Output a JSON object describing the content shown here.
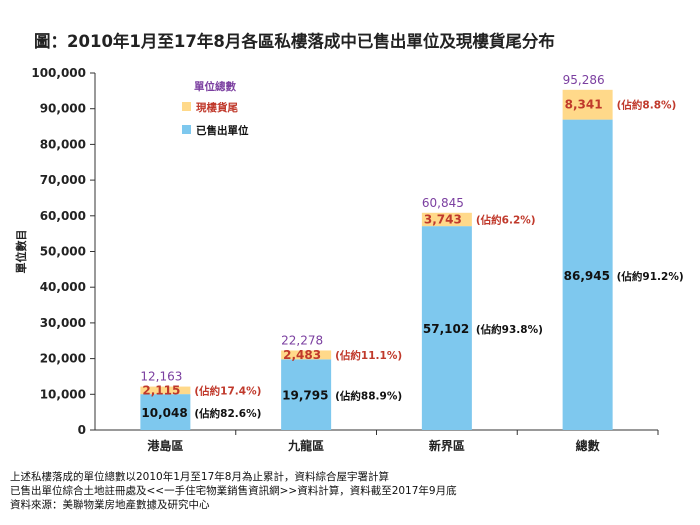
{
  "title": "圖：2010年1月至17年8月各區私樓落成中已售出單位及現樓貨尾分布",
  "chart_data": {
    "type": "bar",
    "stacked": true,
    "ylabel": "單位數目",
    "xlabel": "",
    "ylim": [
      0,
      100000
    ],
    "yticks": [
      "0",
      "10,000",
      "20,000",
      "30,000",
      "40,000",
      "50,000",
      "60,000",
      "70,000",
      "80,000",
      "90,000",
      "100,000"
    ],
    "categories": [
      "港島區",
      "九龍區",
      "新界區",
      "總數"
    ],
    "series": [
      {
        "name": "已售出單位",
        "color": "#7EC8EE",
        "values": [
          10048,
          19795,
          57102,
          86945
        ],
        "labels": [
          "10,048",
          "19,795",
          "57,102",
          "86,945"
        ],
        "pct_labels": [
          "(佔約82.6%)",
          "(佔約88.9%)",
          "(佔約93.8%)",
          "(佔約91.2%)"
        ]
      },
      {
        "name": "現樓貨尾",
        "color": "#FFD98A",
        "values": [
          2115,
          2483,
          3743,
          8341
        ],
        "labels": [
          "2,115",
          "2,483",
          "3,743",
          "8,341"
        ],
        "pct_labels": [
          "(佔約17.4%)",
          "(佔約11.1%)",
          "(佔約6.2%)",
          "(佔約8.8%)"
        ]
      }
    ],
    "totals": [
      12163,
      22278,
      60845,
      95286
    ],
    "total_labels": [
      "12,163",
      "22,278",
      "60,845",
      "95,286"
    ],
    "legend": {
      "title": "單位總數",
      "position": "top-left"
    },
    "colors": {
      "total_text": "#7B3FA0",
      "unsold_text": "#C0392B",
      "axis": "#333333"
    }
  },
  "footer": {
    "line1": "上述私樓落成的單位總數以2010年1月至17年8月為止累計，資料綜合屋宇署計算",
    "line2": "已售出單位綜合土地註冊處及<<一手住宅物業銷售資訊網>>資料計算，資料截至2017年9月底",
    "line3": "資料來源：美聯物業房地產數據及研究中心"
  }
}
